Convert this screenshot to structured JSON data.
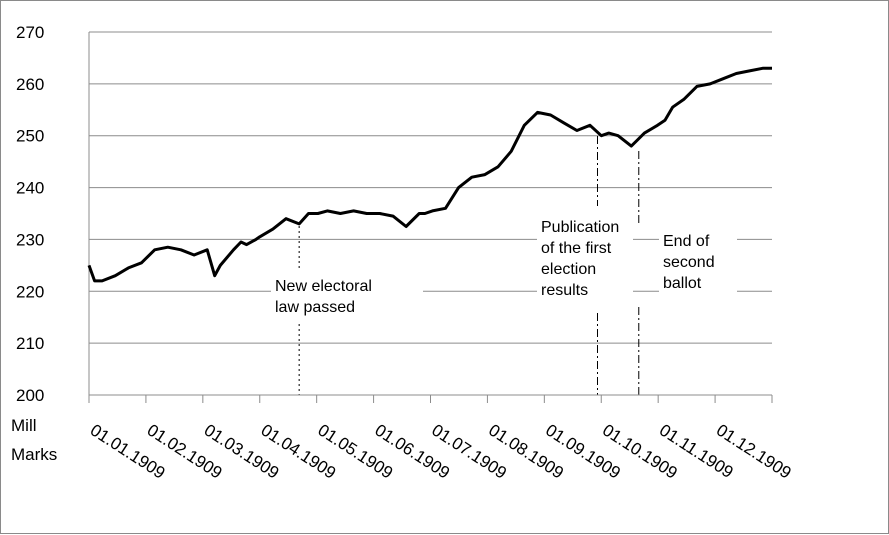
{
  "chart_data": {
    "type": "line",
    "title": "",
    "xlabel": "",
    "ylabel": "Mill Marks",
    "ylim": [
      200,
      270
    ],
    "yticks": [
      200,
      210,
      220,
      230,
      240,
      250,
      260,
      270
    ],
    "xtick_labels": [
      "01.01.1909",
      "01.02.1909",
      "01.03.1909",
      "01.04.1909",
      "01.05.1909",
      "01.06.1909",
      "01.07.1909",
      "01.08.1909",
      "01.09.1909",
      "01.10.1909",
      "01.11.1909",
      "01.12.1909"
    ],
    "x": [
      "1909-01-01",
      "1909-01-04",
      "1909-01-08",
      "1909-01-15",
      "1909-01-22",
      "1909-01-29",
      "1909-02-05",
      "1909-02-12",
      "1909-02-19",
      "1909-02-26",
      "1909-03-05",
      "1909-03-09",
      "1909-03-12",
      "1909-03-19",
      "1909-03-23",
      "1909-03-26",
      "1909-03-31",
      "1909-04-02",
      "1909-04-09",
      "1909-04-16",
      "1909-04-23",
      "1909-04-28",
      "1909-05-03",
      "1909-05-08",
      "1909-05-15",
      "1909-05-22",
      "1909-05-29",
      "1909-06-05",
      "1909-06-12",
      "1909-06-19",
      "1909-06-26",
      "1909-06-29",
      "1909-07-03",
      "1909-07-10",
      "1909-07-17",
      "1909-07-24",
      "1909-07-31",
      "1909-08-07",
      "1909-08-14",
      "1909-08-21",
      "1909-08-28",
      "1909-09-04",
      "1909-09-11",
      "1909-09-18",
      "1909-09-25",
      "1909-10-01",
      "1909-10-05",
      "1909-10-10",
      "1909-10-17",
      "1909-10-24",
      "1909-10-31",
      "1909-11-04",
      "1909-11-08",
      "1909-11-14",
      "1909-11-21",
      "1909-11-28",
      "1909-12-05",
      "1909-12-12",
      "1909-12-19",
      "1909-12-26",
      "1909-12-31"
    ],
    "series": [
      {
        "values": [
          225,
          222,
          222,
          223,
          224.5,
          225.5,
          228,
          228.5,
          228,
          227,
          228,
          223,
          225,
          228,
          229.5,
          229,
          230,
          230.5,
          232,
          234,
          233,
          235,
          235,
          235.5,
          235,
          235.5,
          235,
          235,
          234.5,
          232.5,
          235,
          235,
          235.5,
          236,
          240,
          242,
          242.5,
          244,
          247,
          252,
          254.5,
          254,
          252.5,
          251,
          252,
          250,
          250.5,
          250,
          248,
          250.5,
          252,
          253,
          255.5,
          257,
          259.5,
          260,
          261,
          262,
          262.5,
          263,
          263
        ],
        "color": "#000000"
      }
    ],
    "annotations": [
      {
        "date": "1909-04-23",
        "lines": [
          "New electoral",
          "law passed"
        ]
      },
      {
        "date": "1909-09-29",
        "lines": [
          "Publication",
          "of the first",
          "election",
          "results"
        ]
      },
      {
        "date": "1909-10-21",
        "lines": [
          "End of",
          "second",
          "ballot"
        ]
      }
    ],
    "grid": "horizontal"
  }
}
